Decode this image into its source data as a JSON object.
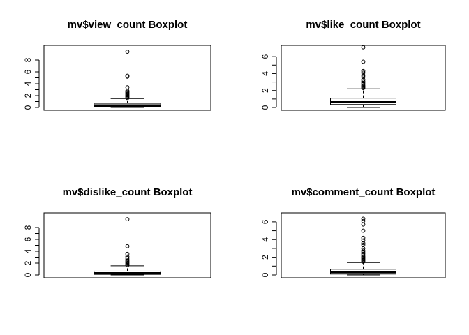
{
  "chart_data": [
    {
      "type": "boxplot",
      "title": "mv$view_count Boxplot",
      "ylim": [
        0,
        10
      ],
      "yticks": [
        "0",
        "2",
        "4",
        "6",
        "8"
      ],
      "box": {
        "min": 0.0,
        "q1": 0.15,
        "median": 0.35,
        "q3": 0.7,
        "whisker_high": 1.5
      },
      "outliers": [
        1.6,
        1.75,
        1.9,
        2.05,
        2.2,
        2.35,
        2.5,
        2.65,
        2.8,
        3.4,
        5.2,
        5.35,
        9.4
      ]
    },
    {
      "type": "boxplot",
      "title": "mv$like_count Boxplot",
      "ylim": [
        0,
        7
      ],
      "yticks": [
        "0",
        "2",
        "4",
        "6"
      ],
      "box": {
        "min": 0.0,
        "q1": 0.35,
        "median": 0.65,
        "q3": 1.1,
        "whisker_high": 2.2
      },
      "outliers": [
        2.3,
        2.4,
        2.5,
        2.6,
        2.75,
        2.9,
        3.1,
        3.3,
        3.6,
        3.8,
        4.1,
        4.3,
        5.4,
        7.1
      ]
    },
    {
      "type": "boxplot",
      "title": "mv$dislike_count Boxplot",
      "ylim": [
        0,
        10
      ],
      "yticks": [
        "0",
        "2",
        "4",
        "6",
        "8"
      ],
      "box": {
        "min": 0.0,
        "q1": 0.1,
        "median": 0.3,
        "q3": 0.65,
        "whisker_high": 1.55
      },
      "outliers": [
        1.65,
        1.8,
        1.95,
        2.1,
        2.25,
        2.4,
        2.6,
        2.85,
        3.1,
        3.55,
        4.85,
        9.4
      ]
    },
    {
      "type": "boxplot",
      "title": "mv$comment_count Boxplot",
      "ylim": [
        0,
        6.7
      ],
      "yticks": [
        "0",
        "2",
        "4",
        "6"
      ],
      "box": {
        "min": 0.0,
        "q1": 0.1,
        "median": 0.3,
        "q3": 0.65,
        "whisker_high": 1.4
      },
      "outliers": [
        1.5,
        1.6,
        1.7,
        1.8,
        1.9,
        2.0,
        2.1,
        2.25,
        2.4,
        2.6,
        2.75,
        3.0,
        3.4,
        3.6,
        3.9,
        4.2,
        5.0,
        5.7,
        6.1,
        6.35
      ]
    }
  ]
}
